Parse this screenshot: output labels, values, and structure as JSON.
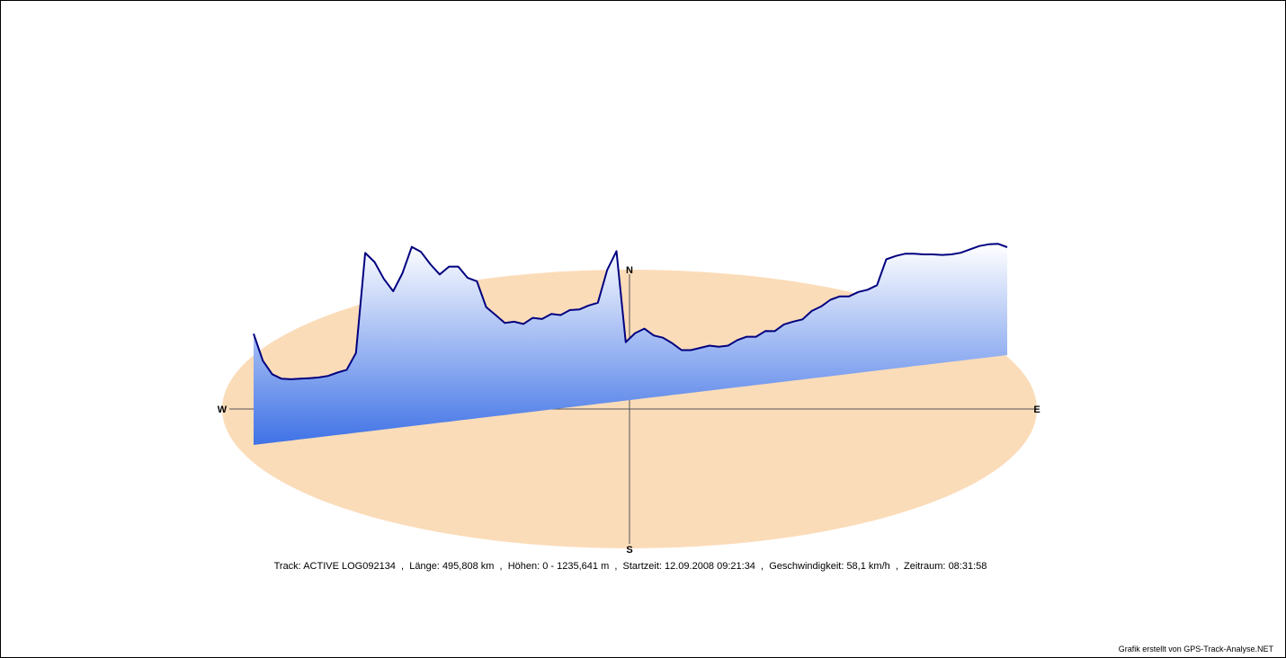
{
  "chart_data": {
    "type": "area",
    "compass": {
      "north": "N",
      "south": "S",
      "west": "W",
      "east": "E"
    },
    "track_name": "ACTIVE LOG092134",
    "length": "495,808 km",
    "elevation_range": "0 - 1235,641 m",
    "start_time": "12.09.2008 09:21:34",
    "speed": "58,1 km/h",
    "duration": "08:31:58",
    "elevation_m": [
      630,
      380,
      250,
      200,
      185,
      180,
      175,
      172,
      175,
      195,
      210,
      350,
      1230,
      1140,
      980,
      860,
      1010,
      1235,
      1180,
      1060,
      960,
      1020,
      1010,
      900,
      860,
      620,
      540,
      460,
      460,
      430,
      475,
      455,
      490,
      470,
      505,
      500,
      525,
      540,
      820,
      980,
      160,
      230,
      260,
      190,
      160,
      100,
      30,
      20,
      30,
      40,
      20,
      20,
      60,
      80,
      70,
      110,
      100,
      150,
      165,
      175,
      240,
      270,
      320,
      340,
      330,
      360,
      370,
      400,
      620,
      640,
      650,
      640,
      625,
      615,
      600,
      595,
      600,
      620,
      640,
      645,
      640,
      600
    ]
  },
  "caption": {
    "track_label": "Track:",
    "length_label": "Länge:",
    "elevation_label": "Höhen:",
    "start_label": "Startzeit:",
    "speed_label": "Geschwindigkeit:",
    "duration_label": "Zeitraum:"
  },
  "credit": "Grafik erstellt von GPS-Track-Analyse.NET",
  "colors": {
    "ellipse": "#fbdcb9",
    "profile_line": "#000080",
    "fill_top": "#ffffff",
    "fill_bottom": "#3f72e6"
  }
}
